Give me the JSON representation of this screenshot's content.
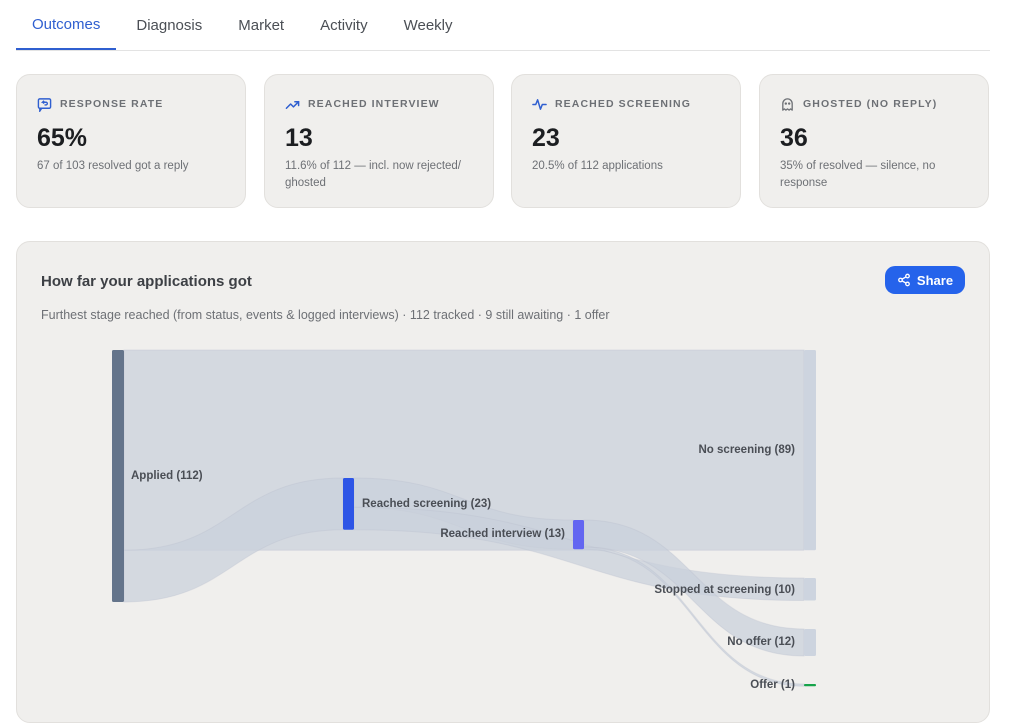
{
  "tabs": [
    {
      "label": "Outcomes",
      "active": true
    },
    {
      "label": "Diagnosis"
    },
    {
      "label": "Market"
    },
    {
      "label": "Activity"
    },
    {
      "label": "Weekly"
    }
  ],
  "cards": [
    {
      "icon": "reply-icon",
      "label": "RESPONSE RATE",
      "value": "65%",
      "sub": "67 of 103 resolved got a reply"
    },
    {
      "icon": "trending-up-icon",
      "label": "REACHED INTERVIEW",
      "value": "13",
      "sub": "11.6% of 112 — incl. now rejected/ ghosted"
    },
    {
      "icon": "activity-icon",
      "label": "REACHED SCREENING",
      "value": "23",
      "sub": "20.5% of 112 applications"
    },
    {
      "icon": "ghost-icon",
      "label": "GHOSTED (NO REPLY)",
      "value": "36",
      "sub": "35% of resolved — silence, no response"
    }
  ],
  "panel": {
    "title": "How far your applications got",
    "subtitle": "Furthest stage reached (from status, events & logged interviews) · 112 tracked · 9 still awaiting · 1 offer",
    "share_label": "Share"
  },
  "colors": {
    "accent": "#2563eb",
    "tab_active": "#2f5fd0",
    "applied_node": "#64748b",
    "screening_node": "#2d55e6",
    "interview_node": "#6366f1",
    "link": "#c9d0db",
    "offer": "#16a34a"
  },
  "chart_data": {
    "type": "sankey",
    "nodes": [
      {
        "id": "applied",
        "label": "Applied (112)",
        "value": 112
      },
      {
        "id": "screening",
        "label": "Reached screening (23)",
        "value": 23
      },
      {
        "id": "interview",
        "label": "Reached interview (13)",
        "value": 13
      },
      {
        "id": "no_screening",
        "label": "No screening (89)",
        "value": 89
      },
      {
        "id": "stopped_screening",
        "label": "Stopped at screening (10)",
        "value": 10
      },
      {
        "id": "no_offer",
        "label": "No offer (12)",
        "value": 12
      },
      {
        "id": "offer",
        "label": "Offer (1)",
        "value": 1
      }
    ],
    "links": [
      {
        "source": "applied",
        "target": "no_screening",
        "value": 89
      },
      {
        "source": "applied",
        "target": "screening",
        "value": 23
      },
      {
        "source": "screening",
        "target": "interview",
        "value": 13
      },
      {
        "source": "screening",
        "target": "stopped_screening",
        "value": 10
      },
      {
        "source": "interview",
        "target": "no_offer",
        "value": 12
      },
      {
        "source": "interview",
        "target": "offer",
        "value": 1
      }
    ]
  }
}
